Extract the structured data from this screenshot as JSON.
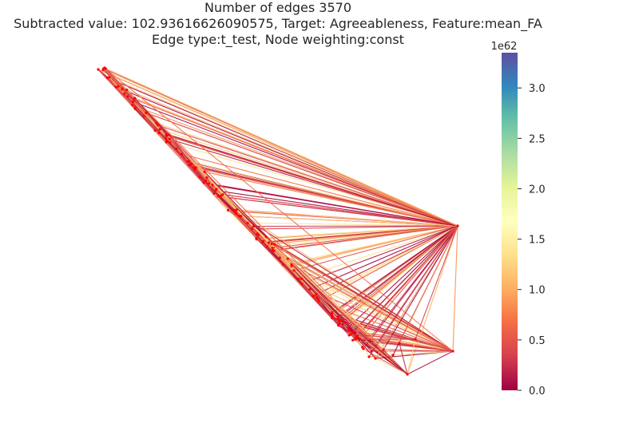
{
  "chart_data": {
    "type": "network_graph",
    "title_lines": [
      "Number of edges 3570",
      "Subtracted value: 102.93616626090575, Target: Agreeableness, Feature:mean_FA",
      "Edge type:t_test, Node weighting:const"
    ],
    "edge_count": 3570,
    "colorbar": {
      "colormap": "Spectral",
      "multiplier_label": "1e62",
      "min": 0.0,
      "max": 3.35,
      "ticks": [
        0.0,
        0.5,
        1.0,
        1.5,
        2.0,
        2.5,
        3.0
      ],
      "tick_labels": [
        "0.0",
        "0.5",
        "1.0",
        "1.5",
        "2.0",
        "2.5",
        "3.0"
      ]
    },
    "colors": {
      "node": "#ff0000",
      "spectral_stops": [
        "#9e0142",
        "#d53e4f",
        "#f46d43",
        "#fdae61",
        "#fee08b",
        "#ffffbf",
        "#e6f598",
        "#abdda4",
        "#66c2a5",
        "#3288bd",
        "#5e4fa2"
      ]
    }
  }
}
